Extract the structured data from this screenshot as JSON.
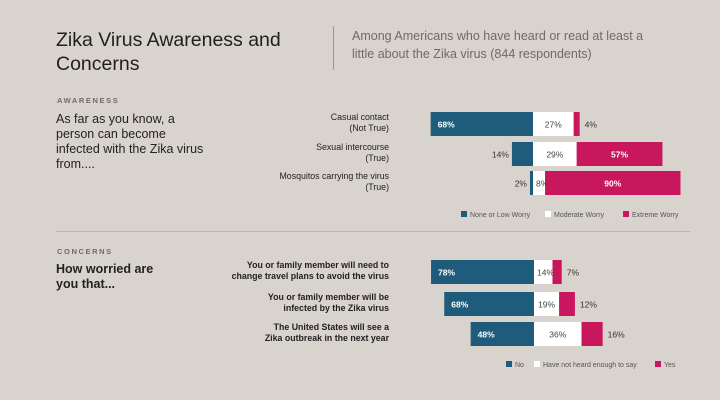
{
  "header": {
    "title": "Zika Virus Awareness and Concerns",
    "subtitle": "Among Americans who have heard or read at least a little about the Zika virus (844 respondents)"
  },
  "awareness": {
    "section_label": "AWARENESS",
    "question": "As far as you know, a person can become infected with the Zika virus from...."
  },
  "concerns": {
    "section_label": "CONCERNS",
    "question": "How worried are you that..."
  },
  "colors": {
    "negative": "#1f5b7a",
    "neutral": "#ffffff",
    "positive": "#c8175d"
  },
  "chart_data": [
    {
      "type": "bar",
      "stacked": true,
      "diverging": true,
      "categories": [
        [
          "Casual contact",
          "(Not True)"
        ],
        [
          "Sexual intercourse",
          "(True)"
        ],
        [
          "Mosquitos carrying the virus",
          "(True)"
        ]
      ],
      "series": [
        {
          "name": "None or Low Worry",
          "values": [
            68,
            14,
            2
          ]
        },
        {
          "name": "Moderate Worry",
          "values": [
            27,
            29,
            8
          ]
        },
        {
          "name": "Extreme Worry",
          "values": [
            4,
            57,
            90
          ]
        }
      ],
      "value_labels": [
        [
          "68%",
          "27%",
          "4%"
        ],
        [
          "14%",
          "29%",
          "57%"
        ],
        [
          "2%",
          "8%",
          "90%"
        ]
      ],
      "legend": [
        "None or Low Worry",
        "Moderate Worry",
        "Extreme Worry"
      ]
    },
    {
      "type": "bar",
      "stacked": true,
      "diverging": true,
      "categories": [
        [
          "You or family member will need to",
          "change travel plans to avoid the virus"
        ],
        [
          "You or family member will be",
          "infected by the Zika virus"
        ],
        [
          "The United States will see a",
          "Zika outbreak in the next year"
        ]
      ],
      "series": [
        {
          "name": "No",
          "values": [
            78,
            68,
            48
          ]
        },
        {
          "name": "Have not heard enough to say",
          "values": [
            14,
            19,
            36
          ]
        },
        {
          "name": "Yes",
          "values": [
            7,
            12,
            16
          ]
        }
      ],
      "value_labels": [
        [
          "78%",
          "14%",
          "7%"
        ],
        [
          "68%",
          "19%",
          "12%"
        ],
        [
          "48%",
          "36%",
          "16%"
        ]
      ],
      "legend": [
        "No",
        "Have not heard enough to say",
        "Yes"
      ]
    }
  ]
}
